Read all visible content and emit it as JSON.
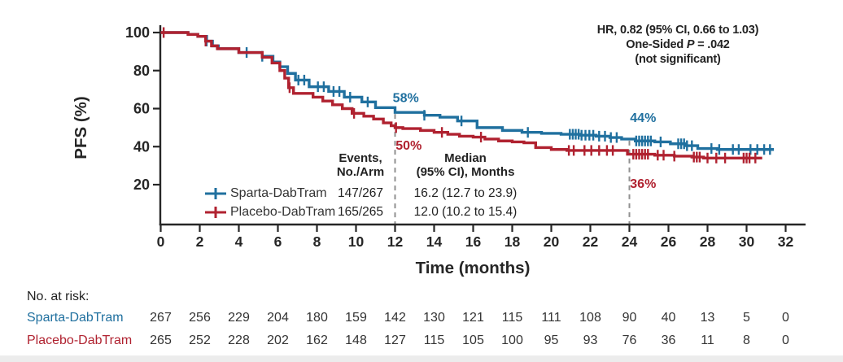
{
  "colors": {
    "sparta_blue": "#20709f",
    "placebo_red": "#b02230",
    "axis_ink": "#262626",
    "dash_gray": "#909090"
  },
  "stats": {
    "hr_line": "HR, 0.82 (95% CI, 0.66 to 1.03)",
    "p_prefix": "One-Sided ",
    "p_symbol": "P",
    "p_value": " = .042",
    "significance": "(not significant)"
  },
  "legend": {
    "col_events": {
      "line1": "Events,",
      "line2": "No./Arm"
    },
    "col_median": {
      "line1": "Median",
      "line2": "(95% CI), Months"
    },
    "rows": [
      {
        "name": "Sparta-DabTram",
        "events": "147/267",
        "median": "16.2 (12.7 to 23.9)"
      },
      {
        "name": "Placebo-DabTram",
        "events": "165/265",
        "median": "12.0 (10.2 to 15.4)"
      }
    ]
  },
  "risk_table": {
    "label": "No. at risk:",
    "time_step_months": 2,
    "rows": [
      {
        "label": "Sparta-DabTram",
        "values": [
          267,
          256,
          229,
          204,
          180,
          159,
          142,
          130,
          121,
          115,
          111,
          108,
          90,
          40,
          13,
          5,
          0
        ]
      },
      {
        "label": "Placebo-DabTram",
        "values": [
          265,
          252,
          228,
          202,
          162,
          148,
          127,
          115,
          105,
          100,
          95,
          93,
          76,
          36,
          11,
          8,
          0
        ]
      }
    ]
  },
  "chart_data": {
    "type": "line",
    "subtype": "kaplan-meier-step",
    "title": "",
    "xlabel": "Time (months)",
    "ylabel": "PFS (%)",
    "xlim": [
      0,
      32
    ],
    "ylim": [
      0,
      100
    ],
    "x_ticks": [
      0,
      2,
      4,
      6,
      8,
      10,
      12,
      14,
      16,
      18,
      20,
      22,
      24,
      26,
      28,
      30,
      32
    ],
    "y_ticks": [
      100,
      80,
      60,
      40,
      20
    ],
    "grid": false,
    "legend_position": "lower-left-inside",
    "series": [
      {
        "name": "Sparta-DabTram",
        "color_key": "sparta_blue",
        "end_month": 31.4,
        "steps": [
          [
            0,
            100
          ],
          [
            1.4,
            99
          ],
          [
            1.9,
            98
          ],
          [
            2.35,
            95.5
          ],
          [
            2.65,
            93
          ],
          [
            2.95,
            91.5
          ],
          [
            4.0,
            89.5
          ],
          [
            5.2,
            87.5
          ],
          [
            5.75,
            84.5
          ],
          [
            6.1,
            82
          ],
          [
            6.5,
            78.5
          ],
          [
            6.9,
            75
          ],
          [
            7.6,
            71.5
          ],
          [
            8.6,
            69
          ],
          [
            9.4,
            66
          ],
          [
            10.3,
            63.5
          ],
          [
            11.0,
            60.5
          ],
          [
            12.0,
            58
          ],
          [
            13.5,
            56.5
          ],
          [
            14.3,
            55.5
          ],
          [
            15.2,
            53.5
          ],
          [
            16.2,
            50
          ],
          [
            17.5,
            48.5
          ],
          [
            18.5,
            47.5
          ],
          [
            19.5,
            47
          ],
          [
            20.5,
            46.5
          ],
          [
            21.5,
            46
          ],
          [
            22.3,
            45.5
          ],
          [
            23.0,
            44.8
          ],
          [
            23.6,
            44
          ],
          [
            24.3,
            43
          ],
          [
            25.3,
            42.5
          ],
          [
            26.1,
            41.5
          ],
          [
            26.9,
            40.5
          ],
          [
            27.5,
            39
          ],
          [
            28.5,
            38.5
          ]
        ],
        "censor_times": [
          2.35,
          4.4,
          5.2,
          7.05,
          7.35,
          8.05,
          8.35,
          8.85,
          9.15,
          9.7,
          10.6,
          13.5,
          15.4,
          18.8,
          20.95,
          21.1,
          21.25,
          21.4,
          21.55,
          21.75,
          21.95,
          22.15,
          22.45,
          22.75,
          23.05,
          23.35,
          24.35,
          24.5,
          24.65,
          24.8,
          24.95,
          25.1,
          25.6,
          26.5,
          26.65,
          26.8,
          26.95,
          27.2,
          28.2,
          28.6,
          29.3,
          29.6,
          30.2,
          30.55,
          30.9,
          31.2
        ]
      },
      {
        "name": "Placebo-DabTram",
        "color_key": "placebo_red",
        "end_month": 30.8,
        "steps": [
          [
            0,
            100
          ],
          [
            1.4,
            99
          ],
          [
            1.9,
            98
          ],
          [
            2.3,
            95.5
          ],
          [
            2.6,
            93
          ],
          [
            2.9,
            91.5
          ],
          [
            4.0,
            89.5
          ],
          [
            5.2,
            87
          ],
          [
            5.7,
            84
          ],
          [
            6.1,
            80
          ],
          [
            6.35,
            76
          ],
          [
            6.55,
            71
          ],
          [
            6.8,
            68
          ],
          [
            7.8,
            66
          ],
          [
            8.3,
            64
          ],
          [
            8.8,
            62
          ],
          [
            9.3,
            60
          ],
          [
            9.8,
            57.5
          ],
          [
            10.4,
            56
          ],
          [
            10.9,
            54.5
          ],
          [
            11.4,
            52.5
          ],
          [
            11.8,
            51
          ],
          [
            12.0,
            50
          ],
          [
            12.4,
            49.5
          ],
          [
            13.3,
            48.5
          ],
          [
            14.0,
            47.5
          ],
          [
            14.7,
            46.5
          ],
          [
            15.3,
            45.5
          ],
          [
            16.0,
            45
          ],
          [
            16.6,
            44
          ],
          [
            17.3,
            43
          ],
          [
            18.0,
            42.5
          ],
          [
            18.6,
            42
          ],
          [
            19.2,
            39.5
          ],
          [
            20.0,
            38.5
          ],
          [
            20.8,
            38
          ],
          [
            23.9,
            36
          ],
          [
            25.3,
            35.5
          ],
          [
            26.3,
            35
          ],
          [
            27.2,
            34.5
          ],
          [
            27.8,
            34
          ]
        ],
        "censor_times": [
          0.15,
          2.3,
          6.6,
          9.9,
          12.05,
          14.4,
          16.4,
          20.9,
          21.15,
          21.7,
          22.05,
          22.45,
          22.85,
          23.15,
          24.2,
          24.35,
          24.5,
          24.65,
          24.8,
          24.95,
          25.45,
          25.75,
          26.3,
          27.3,
          27.45,
          27.6,
          28.0,
          28.45,
          28.9,
          29.85,
          30.0,
          30.15,
          30.45
        ]
      }
    ],
    "reference_lines": [
      {
        "x_month": 12,
        "top_pfs": 58
      },
      {
        "x_month": 24,
        "top_pfs": 44
      }
    ],
    "annotations": [
      {
        "text": "58%",
        "t": 12.55,
        "pfs": 63.5,
        "color_key": "sparta_blue"
      },
      {
        "text": "50%",
        "t": 12.7,
        "pfs": 38.4,
        "color_key": "placebo_red"
      },
      {
        "text": "44%",
        "t": 24.7,
        "pfs": 52.9,
        "color_key": "sparta_blue"
      },
      {
        "text": "36%",
        "t": 24.7,
        "pfs": 18.3,
        "color_key": "placebo_red"
      }
    ]
  }
}
